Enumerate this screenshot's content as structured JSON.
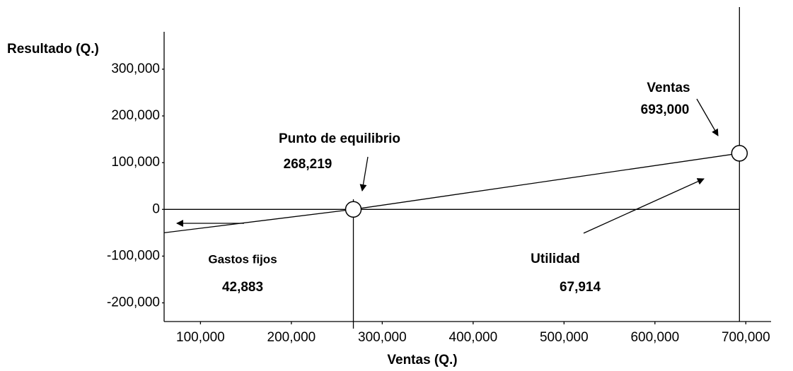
{
  "chart_data": {
    "type": "line",
    "y_label": "Resultado (Q.)",
    "x_label": "Ventas (Q.)",
    "x": [
      60000,
      268219,
      693000
    ],
    "series": [
      {
        "color": "#000000",
        "values": [
          -50000,
          0,
          120000
        ]
      }
    ],
    "xlim": [
      60000,
      720000
    ],
    "xticks": [
      {
        "value": 100000,
        "label": "100,000"
      },
      {
        "value": 200000,
        "label": "200,000"
      },
      {
        "value": 300000,
        "label": "300,000"
      },
      {
        "value": 400000,
        "label": "400,000"
      },
      {
        "value": 500000,
        "label": "500,000"
      },
      {
        "value": 600000,
        "label": "600,000"
      },
      {
        "value": 700000,
        "label": "700,000"
      }
    ],
    "ylim": [
      -240000,
      380000
    ],
    "yticks": [
      {
        "value": 300000,
        "label": "300,000"
      },
      {
        "value": 200000,
        "label": "200,000"
      },
      {
        "value": 100000,
        "label": "100,000"
      },
      0,
      {
        "value": -100000,
        "label": "-100,000"
      },
      {
        "value": -200000,
        "label": "-200,000"
      }
    ],
    "annotations": [
      "Punto de equilibrio",
      "268,219",
      "Ventas",
      "693,000",
      "Gastos fijos",
      "42,883",
      "Utilidad",
      "67,914"
    ],
    "grid": false
  }
}
